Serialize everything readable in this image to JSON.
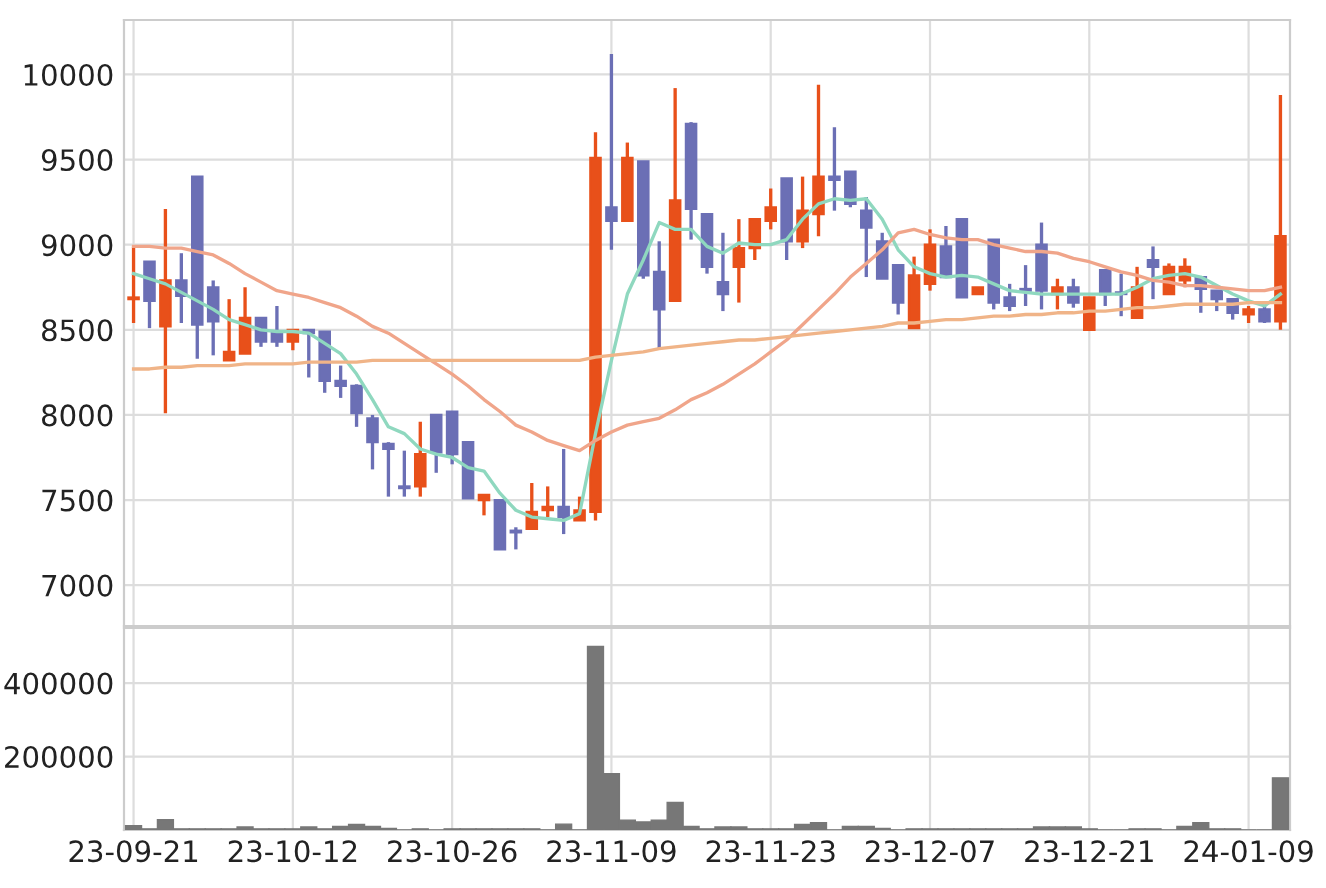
{
  "chart_data": [
    {
      "type": "candlestick",
      "categories": [
        null,
        null,
        null,
        null,
        null,
        null,
        null,
        null,
        null,
        null,
        null,
        null,
        null,
        null,
        null,
        null,
        null,
        null,
        null,
        null,
        null,
        null,
        null,
        null,
        null,
        null,
        null,
        null,
        null,
        null,
        null,
        null,
        null,
        null,
        null,
        null,
        null,
        null,
        null,
        null,
        null,
        null,
        null,
        null,
        null,
        null,
        null,
        null,
        null,
        null,
        null,
        null,
        null,
        null,
        null,
        null,
        null,
        null,
        null,
        null,
        null,
        null,
        null,
        null,
        null,
        null,
        null,
        null,
        null,
        null,
        null,
        null,
        null
      ],
      "ohlc": [
        [
          8680,
          8990,
          8540,
          8690
        ],
        [
          8900,
          8900,
          8510,
          8670
        ],
        [
          8520,
          9210,
          8010,
          8790
        ],
        [
          8790,
          8950,
          8540,
          8700
        ],
        [
          9400,
          9400,
          8330,
          8530
        ],
        [
          8750,
          8790,
          8350,
          8550
        ],
        [
          8320,
          8680,
          8320,
          8370
        ],
        [
          8360,
          8750,
          8360,
          8570
        ],
        [
          8570,
          8570,
          8400,
          8430
        ],
        [
          8490,
          8640,
          8400,
          8430
        ],
        [
          8430,
          8500,
          8380,
          8500
        ],
        [
          8500,
          8500,
          8220,
          8480
        ],
        [
          8490,
          8490,
          8130,
          8200
        ],
        [
          8200,
          8290,
          8100,
          8170
        ],
        [
          8170,
          8180,
          7930,
          8010
        ],
        [
          7980,
          8000,
          7680,
          7840
        ],
        [
          7830,
          7840,
          7520,
          7800
        ],
        [
          7580,
          7790,
          7520,
          7570
        ],
        [
          7580,
          7960,
          7520,
          7770
        ],
        [
          8000,
          8000,
          7660,
          7780
        ],
        [
          8020,
          8020,
          7710,
          7770
        ],
        [
          7840,
          7840,
          7510,
          7510
        ],
        [
          7500,
          7530,
          7410,
          7530
        ],
        [
          7500,
          7500,
          7210,
          7210
        ],
        [
          7320,
          7340,
          7210,
          7310
        ],
        [
          7330,
          7600,
          7330,
          7430
        ],
        [
          7440,
          7580,
          7400,
          7460
        ],
        [
          7460,
          7800,
          7300,
          7400
        ],
        [
          7380,
          7520,
          7380,
          7440
        ],
        [
          7430,
          9660,
          7380,
          9510
        ],
        [
          9220,
          10120,
          8970,
          9140
        ],
        [
          9140,
          9600,
          9140,
          9510
        ],
        [
          9490,
          9490,
          8800,
          8820
        ],
        [
          8840,
          9020,
          8390,
          8620
        ],
        [
          8670,
          9920,
          8670,
          9260
        ],
        [
          9710,
          9720,
          9030,
          9210
        ],
        [
          9180,
          9180,
          8830,
          8870
        ],
        [
          8780,
          9070,
          8610,
          8710
        ],
        [
          8870,
          9150,
          8660,
          8980
        ],
        [
          8980,
          9150,
          8910,
          9150
        ],
        [
          9140,
          9330,
          9090,
          9220
        ],
        [
          9390,
          9390,
          8910,
          9020
        ],
        [
          9020,
          9400,
          8980,
          9200
        ],
        [
          9180,
          9940,
          9050,
          9400
        ],
        [
          9400,
          9690,
          9200,
          9380
        ],
        [
          9430,
          9430,
          9220,
          9240
        ],
        [
          9200,
          9280,
          8810,
          9100
        ],
        [
          9020,
          9070,
          8800,
          8800
        ],
        [
          8880,
          8880,
          8590,
          8660
        ],
        [
          8510,
          8930,
          8510,
          8820
        ],
        [
          8770,
          9090,
          8730,
          9000
        ],
        [
          8990,
          9110,
          8810,
          8810
        ],
        [
          9150,
          9150,
          8690,
          8690
        ],
        [
          8710,
          8750,
          8710,
          8750
        ],
        [
          9030,
          9030,
          8620,
          8660
        ],
        [
          8690,
          8770,
          8610,
          8640
        ],
        [
          8740,
          8880,
          8640,
          8730
        ],
        [
          9000,
          9130,
          8620,
          8730
        ],
        [
          8710,
          8800,
          8620,
          8750
        ],
        [
          8750,
          8800,
          8630,
          8660
        ],
        [
          8500,
          8690,
          8500,
          8690
        ],
        [
          8850,
          8850,
          8640,
          8710
        ],
        [
          8720,
          8830,
          8580,
          8710
        ],
        [
          8570,
          8870,
          8570,
          8750
        ],
        [
          8910,
          8990,
          8680,
          8870
        ],
        [
          8710,
          8890,
          8710,
          8870
        ],
        [
          8790,
          8920,
          8750,
          8870
        ],
        [
          8810,
          8810,
          8600,
          8740
        ],
        [
          8730,
          8730,
          8610,
          8680
        ],
        [
          8680,
          8680,
          8560,
          8600
        ],
        [
          8590,
          8640,
          8540,
          8620
        ],
        [
          8620,
          8640,
          8540,
          8550
        ],
        [
          8550,
          9880,
          8500,
          9050
        ]
      ],
      "colors": [
        "#e8501a",
        "#6b6fb5",
        "#e8501a",
        "#6b6fb5",
        "#6b6fb5",
        "#6b6fb5",
        "#e8501a",
        "#e8501a",
        "#6b6fb5",
        "#6b6fb5",
        "#e8501a",
        "#6b6fb5",
        "#6b6fb5",
        "#6b6fb5",
        "#6b6fb5",
        "#6b6fb5",
        "#6b6fb5",
        "#6b6fb5",
        "#e8501a",
        "#6b6fb5",
        "#6b6fb5",
        "#6b6fb5",
        "#e8501a",
        "#6b6fb5",
        "#6b6fb5",
        "#e8501a",
        "#e8501a",
        "#6b6fb5",
        "#e8501a",
        "#e8501a",
        "#6b6fb5",
        "#e8501a",
        "#6b6fb5",
        "#6b6fb5",
        "#e8501a",
        "#6b6fb5",
        "#6b6fb5",
        "#6b6fb5",
        "#e8501a",
        "#e8501a",
        "#e8501a",
        "#6b6fb5",
        "#e8501a",
        "#e8501a",
        "#6b6fb5",
        "#6b6fb5",
        "#6b6fb5",
        "#6b6fb5",
        "#6b6fb5",
        "#e8501a",
        "#e8501a",
        "#6b6fb5",
        "#6b6fb5",
        "#e8501a",
        "#6b6fb5",
        "#6b6fb5",
        "#6b6fb5",
        "#6b6fb5",
        "#e8501a",
        "#6b6fb5",
        "#e8501a",
        "#6b6fb5",
        "#6b6fb5",
        "#e8501a",
        "#6b6fb5",
        "#e8501a",
        "#e8501a",
        "#6b6fb5",
        "#6b6fb5",
        "#6b6fb5",
        "#e8501a",
        "#6b6fb5",
        "#e8501a"
      ],
      "series": [
        {
          "type": "line",
          "color": "#8fd8bf",
          "values": [
            8830,
            8800,
            8770,
            8720,
            8670,
            8620,
            8560,
            8530,
            8500,
            8490,
            8490,
            8480,
            8420,
            8360,
            8240,
            8090,
            7930,
            7890,
            7800,
            7770,
            7750,
            7690,
            7670,
            7540,
            7440,
            7400,
            7390,
            7380,
            7420,
            7890,
            8320,
            8710,
            8910,
            9130,
            9090,
            9090,
            8990,
            8950,
            9010,
            9000,
            9000,
            9030,
            9150,
            9240,
            9270,
            9260,
            9270,
            9150,
            8970,
            8870,
            8830,
            8810,
            8820,
            8810,
            8770,
            8730,
            8720,
            8710,
            8710,
            8710,
            8710,
            8710,
            8710,
            8750,
            8800,
            8820,
            8830,
            8810,
            8760,
            8710,
            8670,
            8640,
            8710
          ]
        },
        {
          "type": "line",
          "color": "#f0a58a",
          "values": [
            8990,
            8990,
            8980,
            8980,
            8960,
            8940,
            8890,
            8830,
            8780,
            8730,
            8710,
            8690,
            8660,
            8630,
            8580,
            8520,
            8480,
            8420,
            8360,
            8300,
            8240,
            8170,
            8090,
            8020,
            7940,
            7900,
            7850,
            7820,
            7790,
            7850,
            7900,
            7940,
            7960,
            7980,
            8030,
            8090,
            8130,
            8180,
            8240,
            8300,
            8370,
            8440,
            8530,
            8620,
            8710,
            8810,
            8890,
            8970,
            9070,
            9090,
            9060,
            9040,
            9030,
            9030,
            9000,
            8980,
            8960,
            8960,
            8950,
            8920,
            8900,
            8870,
            8840,
            8820,
            8790,
            8780,
            8760,
            8760,
            8750,
            8740,
            8730,
            8730,
            8750
          ]
        },
        {
          "type": "line",
          "color": "#f0b488",
          "values": [
            8270,
            8270,
            8280,
            8280,
            8290,
            8290,
            8290,
            8300,
            8300,
            8300,
            8300,
            8310,
            8310,
            8310,
            8310,
            8320,
            8320,
            8320,
            8320,
            8320,
            8320,
            8320,
            8320,
            8320,
            8320,
            8320,
            8320,
            8320,
            8320,
            8340,
            8350,
            8360,
            8370,
            8390,
            8400,
            8410,
            8420,
            8430,
            8440,
            8440,
            8450,
            8460,
            8470,
            8480,
            8490,
            8500,
            8510,
            8520,
            8540,
            8540,
            8550,
            8560,
            8560,
            8570,
            8580,
            8580,
            8590,
            8590,
            8600,
            8600,
            8610,
            8610,
            8620,
            8630,
            8630,
            8640,
            8650,
            8650,
            8650,
            8650,
            8660,
            8660,
            8660
          ]
        }
      ],
      "ylim": [
        6760,
        10320
      ],
      "yticks": [
        7000,
        7500,
        8000,
        8500,
        9000,
        9500,
        10000
      ],
      "grid": true,
      "tick_labels": "y"
    },
    {
      "type": "bar",
      "categories": [
        "23-09-21",
        null,
        null,
        null,
        null,
        null,
        null,
        null,
        null,
        null,
        "23-10-12",
        null,
        null,
        null,
        null,
        null,
        null,
        null,
        null,
        null,
        "23-10-26",
        null,
        null,
        null,
        null,
        null,
        null,
        null,
        null,
        null,
        "23-11-09",
        null,
        null,
        null,
        null,
        null,
        null,
        null,
        null,
        null,
        "23-11-23",
        null,
        null,
        null,
        null,
        null,
        null,
        null,
        null,
        null,
        "23-12-07",
        null,
        null,
        null,
        null,
        null,
        null,
        null,
        null,
        null,
        "23-12-21",
        null,
        null,
        null,
        null,
        null,
        null,
        null,
        null,
        null,
        "24-01-09",
        null,
        null
      ],
      "values": [
        12000,
        3000,
        28000,
        3000,
        3000,
        3000,
        3000,
        8000,
        3000,
        3000,
        3000,
        8000,
        3000,
        10000,
        15000,
        10000,
        4000,
        0,
        3000,
        0,
        3000,
        3000,
        3000,
        3000,
        3000,
        3000,
        0,
        16000,
        0,
        500000,
        153000,
        27000,
        22000,
        27000,
        75000,
        10000,
        3000,
        8000,
        8000,
        3000,
        3000,
        3000,
        15000,
        20000,
        0,
        10000,
        10000,
        4000,
        0,
        3000,
        3000,
        3000,
        3000,
        3000,
        3000,
        3000,
        3000,
        8000,
        8000,
        8000,
        3000,
        0,
        0,
        3000,
        3000,
        0,
        10000,
        20000,
        3000,
        3000,
        0,
        0,
        142000
      ],
      "color": "#777777",
      "ylim": [
        0,
        550000
      ],
      "yticks": [
        200000,
        400000
      ],
      "grid": true
    }
  ]
}
